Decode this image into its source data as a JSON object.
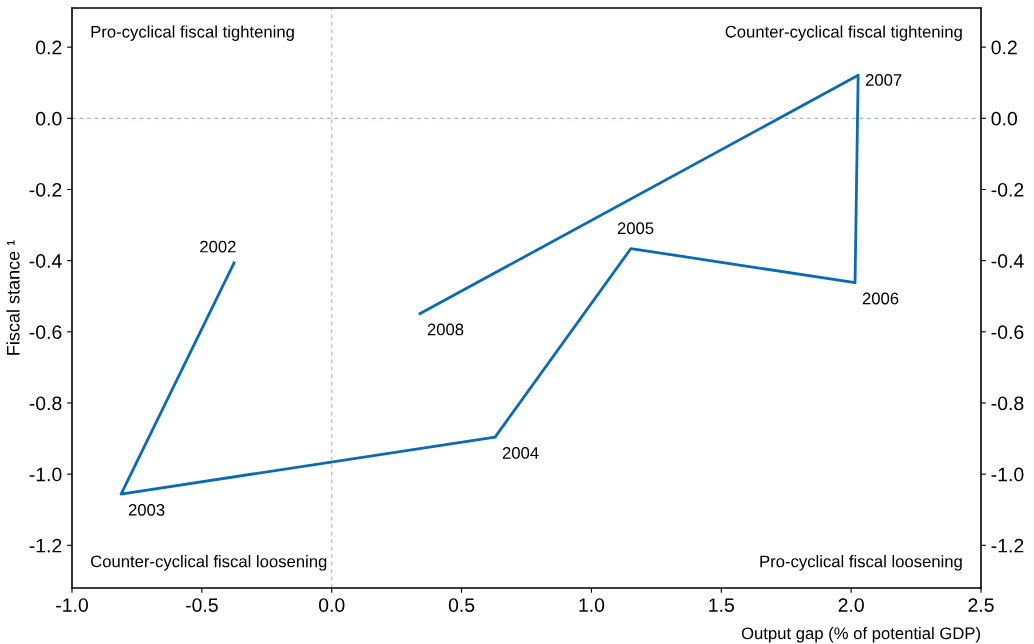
{
  "chart_data": {
    "type": "line",
    "xlabel": "Output gap (% of potential GDP)",
    "ylabel": "Fiscal stance ¹",
    "x": [
      -0.376,
      -0.811,
      0.629,
      1.152,
      2.015,
      2.027,
      0.34
    ],
    "series": [
      {
        "color": "#0a6ab4",
        "values": [
          -0.406,
          -1.056,
          -0.896,
          -0.366,
          -0.462,
          0.121,
          -0.549
        ]
      }
    ],
    "xlim": [
      -1.0,
      2.5
    ],
    "xticks": [
      {
        "value": -1,
        "label": "-1.0"
      },
      -0.5,
      {
        "value": 0,
        "label": "0.0"
      },
      0.5,
      {
        "value": 1,
        "label": "1.0"
      },
      1.5,
      {
        "value": 2,
        "label": "2.0"
      },
      2.5
    ],
    "ylim": [
      -1.32,
      0.31
    ],
    "yticks": [
      -1.2,
      {
        "value": -1,
        "label": "-1.0"
      },
      -0.8,
      -0.6,
      -0.4,
      -0.2,
      {
        "value": 0,
        "label": "0.0"
      },
      0.2
    ],
    "y2lim": [
      -1.32,
      0.31
    ],
    "y2ticks": [
      -1.2,
      {
        "value": -1,
        "label": "-1.0"
      },
      -0.8,
      -0.6,
      -0.4,
      -0.2,
      {
        "value": 0,
        "label": "0.0"
      },
      0.2
    ],
    "ref_lines": [
      {
        "axis": "x",
        "value": 0,
        "color": "#bbbbbb",
        "line_style": "dashed"
      },
      {
        "axis": "y",
        "value": 0,
        "color": "#aab0d8",
        "line_style": "dashed"
      }
    ],
    "annotations": [
      "Pro-cyclical fiscal tightening",
      "Counter-cyclical fiscal tightening",
      "Counter-cyclical fiscal loosening",
      "Pro-cyclical fiscal loosening",
      {
        "text": "2002",
        "x": -0.376,
        "y": -0.406
      },
      {
        "text": "2003",
        "x": -0.811,
        "y": -1.056
      },
      {
        "text": "2004",
        "x": 0.629,
        "y": -0.896
      },
      {
        "text": "2005",
        "x": 1.152,
        "y": -0.366
      },
      {
        "text": "2006",
        "x": 2.015,
        "y": -0.462
      },
      {
        "text": "2007",
        "x": 2.027,
        "y": 0.121
      },
      {
        "text": "2008",
        "x": 0.34,
        "y": -0.549
      }
    ],
    "grid": false,
    "legend": false,
    "marker": "none",
    "line_style": "solid"
  }
}
